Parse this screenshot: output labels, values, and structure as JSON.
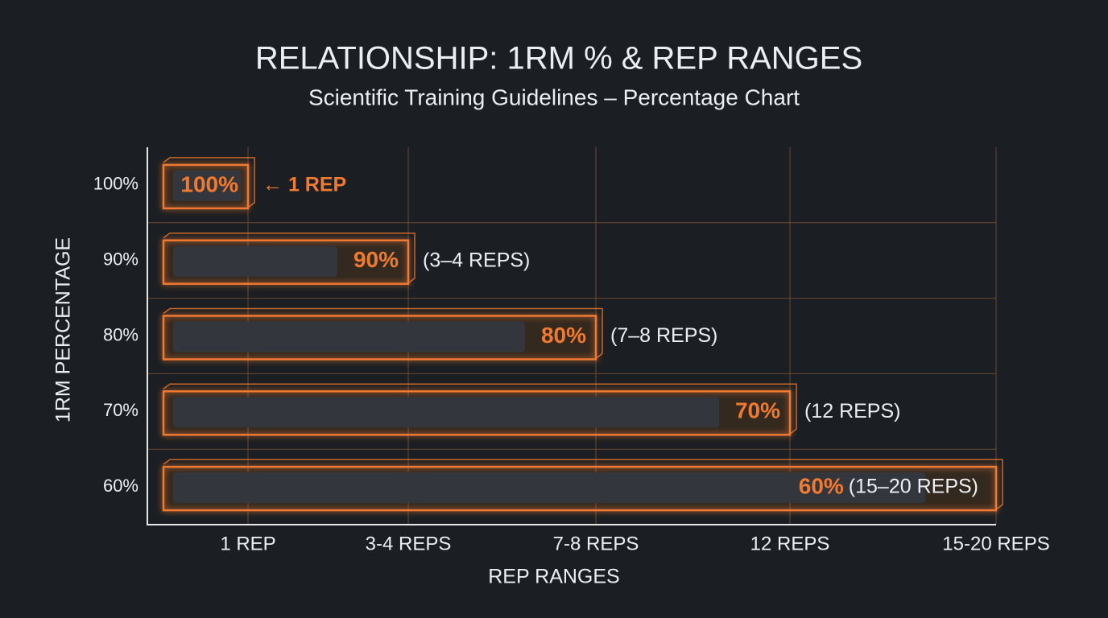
{
  "chart_data": {
    "type": "bar",
    "orientation": "horizontal",
    "title": "RELATIONSHIP: 1RM % & REP RANGES",
    "subtitle": "Scientific Training Guidelines – Percentage Chart",
    "y_label": "1RM PERCENTAGE",
    "x_label": "REP RANGES",
    "categories": [
      "100%",
      "90%",
      "80%",
      "70%",
      "60%"
    ],
    "x_categories": [
      "1 REP",
      "3-4 REPS",
      "7-8 REPS",
      "12 REPS",
      "15-20 REPS"
    ],
    "values": [
      100,
      90,
      80,
      70,
      60
    ],
    "value_labels": [
      "100%",
      "90%",
      "80%",
      "70%",
      "60%"
    ],
    "annotations": [
      "← 1 REP",
      "(3–4 REPS)",
      "(7–8 REPS)",
      "(12 REPS)",
      "(15–20 REPS)"
    ],
    "color": "#f07a30",
    "grid": true
  }
}
